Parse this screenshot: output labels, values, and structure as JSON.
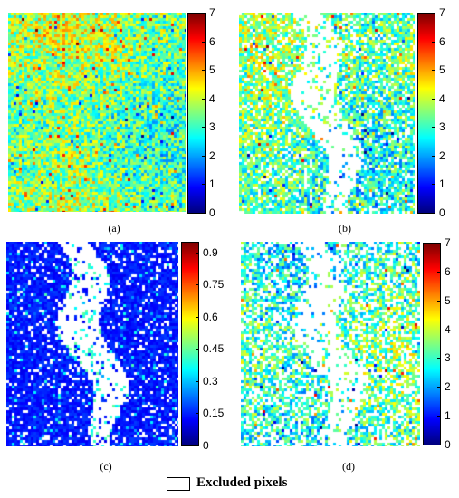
{
  "chart_data": [
    {
      "type": "heatmap",
      "panel_label": "(a)",
      "colormap": "jet",
      "colorbar": {
        "min": 0,
        "max": 7,
        "ticks": [
          "7",
          "6",
          "5",
          "4",
          "3",
          "2",
          "1",
          "0"
        ]
      },
      "typical_value": 3.5,
      "excluded_fraction": 0.0
    },
    {
      "type": "heatmap",
      "panel_label": "(b)",
      "colormap": "jet",
      "colorbar": {
        "min": 0,
        "max": 7,
        "ticks": [
          "7",
          "6",
          "5",
          "4",
          "3",
          "2",
          "1",
          "0"
        ]
      },
      "typical_value": 3.2,
      "excluded_fraction": 0.22
    },
    {
      "type": "heatmap",
      "panel_label": "(c)",
      "colormap": "jet",
      "colorbar": {
        "min": 0,
        "max": 0.95,
        "ticks": [
          "0.9",
          "0.75",
          "0.6",
          "0.45",
          "0.3",
          "0.15",
          "0"
        ]
      },
      "typical_value": 0.1,
      "excluded_fraction": 0.15
    },
    {
      "type": "heatmap",
      "panel_label": "(d)",
      "colormap": "jet",
      "colorbar": {
        "min": 0,
        "max": 7,
        "ticks": [
          "7",
          "6",
          "5",
          "4",
          "3",
          "2",
          "1",
          "0"
        ]
      },
      "typical_value": 3.0,
      "excluded_fraction": 0.45
    }
  ],
  "legend": {
    "label": "Excluded pixels",
    "swatch_color": "#ffffff"
  }
}
